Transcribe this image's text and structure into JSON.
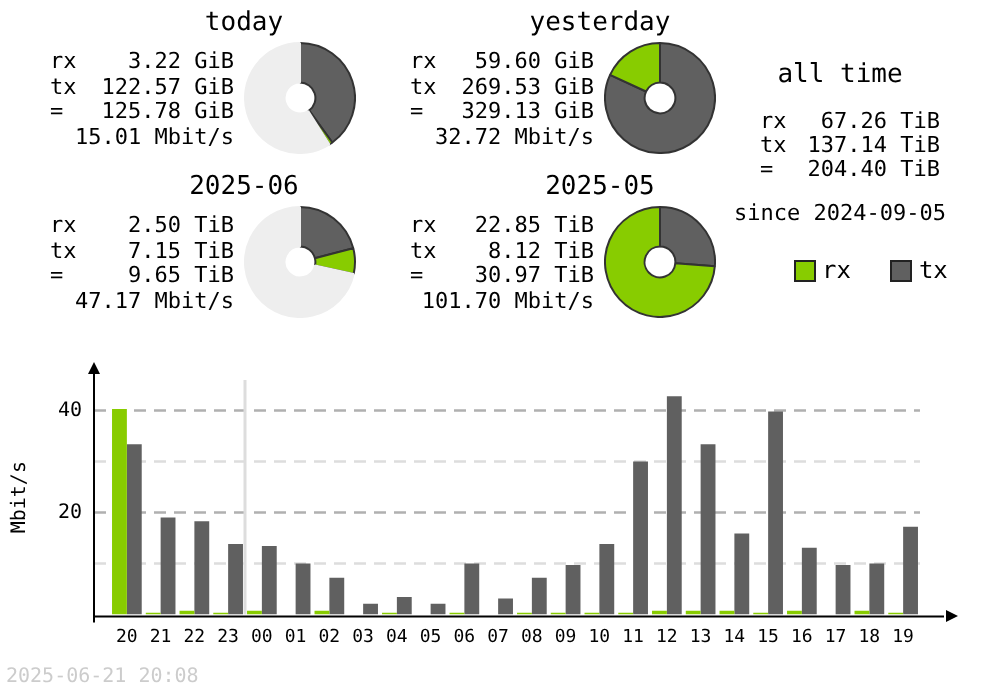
{
  "chart_data": [
    {
      "type": "donut",
      "title": "today",
      "categories": [
        null,
        null,
        null
      ],
      "values": [
        40,
        1,
        59
      ],
      "colors": [
        "#606060",
        "#88cc00",
        "#eeeeee"
      ],
      "annotations": [
        "rx 3.22 GiB",
        "tx 122.57 GiB",
        "= 125.78 GiB",
        "15.01 Mbit/s"
      ]
    },
    {
      "type": "donut",
      "title": "yesterday",
      "categories": [
        null,
        null
      ],
      "values": [
        81.9,
        18.1
      ],
      "colors": [
        "#606060",
        "#88cc00"
      ],
      "annotations": [
        "rx 59.60 GiB",
        "tx 269.53 GiB",
        "= 329.13 GiB",
        "32.72 Mbit/s"
      ]
    },
    {
      "type": "other",
      "title": "all time",
      "annotations": [
        "rx 67.26 TiB",
        "tx 137.14 TiB",
        "= 204.40 TiB",
        "since 2024-09-05"
      ]
    },
    {
      "type": "donut",
      "title": "2025-06",
      "categories": [
        null,
        null,
        null
      ],
      "values": [
        21,
        7.5,
        71.5
      ],
      "colors": [
        "#606060",
        "#88cc00",
        "#eeeeee"
      ],
      "annotations": [
        "rx 2.50 TiB",
        "tx 7.15 TiB",
        "= 9.65 TiB",
        "47.17 Mbit/s"
      ]
    },
    {
      "type": "donut",
      "title": "2025-05",
      "categories": [
        null,
        null
      ],
      "values": [
        26.2,
        73.8
      ],
      "colors": [
        "#606060",
        "#88cc00"
      ],
      "annotations": [
        "rx 22.85 TiB",
        "tx 8.12 TiB",
        "= 30.97 TiB",
        "101.70 Mbit/s"
      ]
    },
    {
      "type": "bar",
      "ylabel": "Mbit/s",
      "categories": [
        "20",
        "21",
        "22",
        "23",
        "00",
        "01",
        "02",
        "03",
        "04",
        "05",
        "06",
        "07",
        "08",
        "09",
        "10",
        "11",
        "12",
        "13",
        "14",
        "15",
        "16",
        "17",
        "18",
        "19"
      ],
      "series": [
        {
          "name": "rx",
          "color": "#88cc00",
          "values": [
            40.3,
            0.3,
            0.7,
            0.3,
            0.7,
            0,
            0.7,
            0,
            0.3,
            0,
            0.3,
            0,
            0.3,
            0.3,
            0.3,
            0.3,
            0.7,
            0.7,
            0.7,
            0.3,
            0.7,
            0,
            0.7,
            0.3
          ]
        },
        {
          "name": "tx",
          "color": "#606060",
          "values": [
            33.4,
            19.0,
            18.3,
            13.8,
            13.4,
            10.0,
            7.2,
            2.1,
            3.4,
            2.1,
            10.0,
            3.1,
            7.2,
            9.7,
            13.8,
            30.0,
            42.8,
            33.4,
            15.9,
            39.8,
            13.1,
            9.7,
            10.0,
            17.2
          ]
        }
      ],
      "ylim": [
        0,
        46
      ],
      "yticks": [
        {
          "value": 10,
          "label": null
        },
        20,
        {
          "value": 30,
          "label": null
        },
        40
      ],
      "grid": "y",
      "legend": "top right",
      "ref_lines": [
        {
          "axis": "x",
          "value": "00",
          "color": "#dddddd"
        }
      ],
      "annotations": [
        "2025-06-21 20:08"
      ]
    }
  ]
}
